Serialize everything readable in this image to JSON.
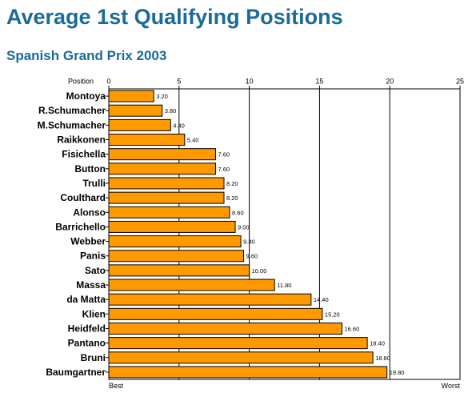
{
  "chart_data": {
    "type": "bar",
    "orientation": "horizontal",
    "title": "Average 1st Qualifying Positions",
    "subtitle": "Spanish Grand Prix 2003",
    "axis_label": "Position",
    "xlim": [
      0,
      25
    ],
    "ticks": [
      0,
      5,
      10,
      15,
      20,
      25
    ],
    "tick_labels": [
      "0",
      "5",
      "10",
      "15",
      "20",
      "25"
    ],
    "x_start_label": "Best",
    "x_end_label": "Worst",
    "grid": true,
    "bar_color": "#ff9900",
    "categories": [
      "Montoya",
      "R.Schumacher",
      "M.Schumacher",
      "Raikkonen",
      "Fisichella",
      "Button",
      "Trulli",
      "Coulthard",
      "Alonso",
      "Barrichello",
      "Webber",
      "Panis",
      "Sato",
      "Massa",
      "da Matta",
      "Klien",
      "Heidfeld",
      "Pantano",
      "Bruni",
      "Baumgartner"
    ],
    "values": [
      3.2,
      3.8,
      4.4,
      5.4,
      7.6,
      7.6,
      8.2,
      8.2,
      8.6,
      9.0,
      9.4,
      9.6,
      10.0,
      11.8,
      14.4,
      15.2,
      16.6,
      18.4,
      18.8,
      19.8
    ],
    "value_labels": [
      "3.20",
      "3.80",
      "4.40",
      "5.40",
      "7.60",
      "7.60",
      "8.20",
      "8.20",
      "8.60",
      "9.00",
      "9.40",
      "9.60",
      "10.00",
      "11.80",
      "14.40",
      "15.20",
      "16.60",
      "18.40",
      "18.80",
      "19.80"
    ]
  }
}
